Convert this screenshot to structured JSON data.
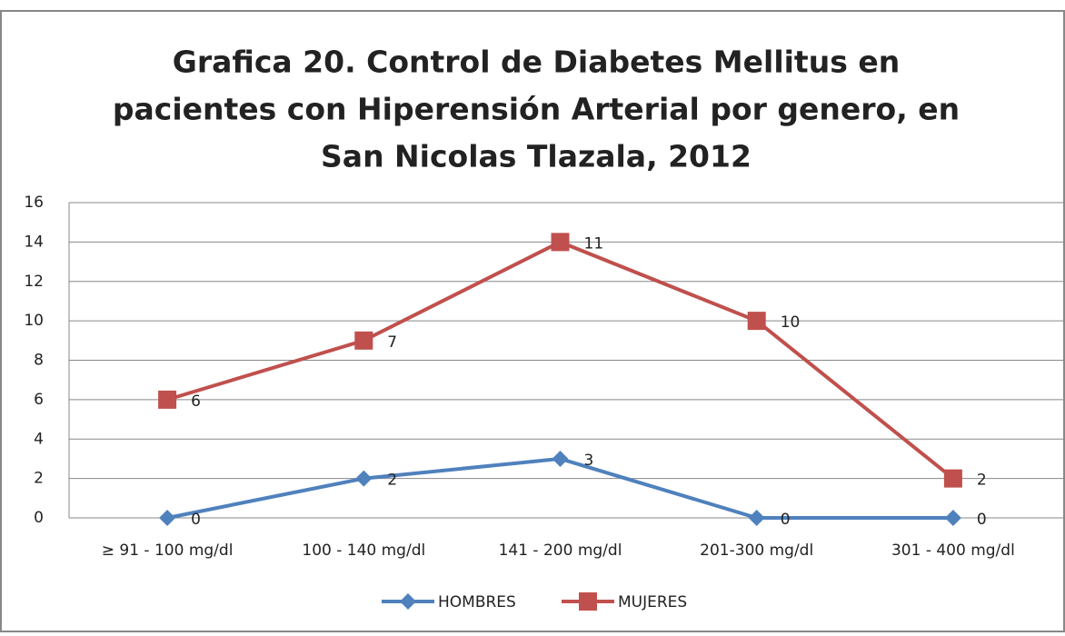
{
  "chart_data": {
    "type": "line",
    "stacked": true,
    "title": [
      "Grafica 20. Control de Diabetes Mellitus en",
      "pacientes con Hiperensión Arterial por genero, en",
      "San Nicolas Tlazala, 2012"
    ],
    "categories": [
      "≥ 91 - 100 mg/dl",
      "100 - 140 mg/dl",
      "141 - 200 mg/dl",
      "201-300 mg/dl",
      "301 - 400 mg/dl"
    ],
    "series": [
      {
        "name": "HOMBRES",
        "color": "#4f81bd",
        "marker": "diamond",
        "values": [
          0,
          2,
          3,
          0,
          0
        ]
      },
      {
        "name": "MUJERES",
        "color": "#c0504d",
        "marker": "square",
        "values": [
          6,
          7,
          11,
          10,
          2
        ]
      }
    ],
    "ylim": [
      0,
      16
    ],
    "yticks": [
      0,
      2,
      4,
      6,
      8,
      10,
      12,
      14,
      16
    ],
    "grid": true,
    "legend": "bottom"
  }
}
